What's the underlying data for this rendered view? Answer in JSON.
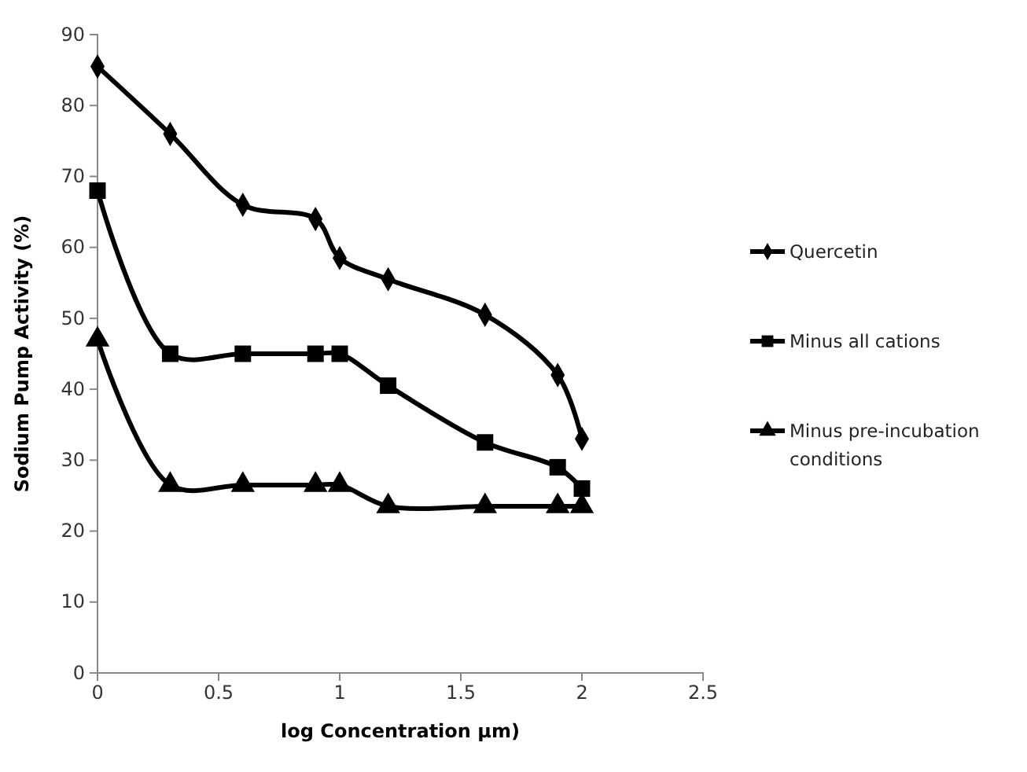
{
  "chart_data": {
    "type": "line",
    "xlabel": "log Concentration µm)",
    "ylabel": "Sodium Pump Activity (%)",
    "x": [
      0,
      0.3,
      0.6,
      0.9,
      1,
      1.2,
      1.6,
      1.9,
      2
    ],
    "xlim": [
      0,
      2.5
    ],
    "xticks": [
      0,
      0.5,
      1,
      1.5,
      2,
      2.5
    ],
    "ylim": [
      0,
      90
    ],
    "yticks": [
      0,
      10,
      20,
      30,
      40,
      50,
      60,
      70,
      80,
      90
    ],
    "grid": false,
    "legend": "right",
    "line_style": "solid",
    "series": [
      {
        "name": "Quercetin",
        "color": "#000000",
        "marker": "diamond",
        "values": [
          85.5,
          76,
          66,
          64,
          58.5,
          55.5,
          50.5,
          42,
          33
        ]
      },
      {
        "name": "Minus all cations",
        "color": "#000000",
        "marker": "square",
        "values": [
          68,
          45,
          45,
          45,
          45,
          40.5,
          32.5,
          29,
          26
        ]
      },
      {
        "name": "Minus pre-incubation conditions",
        "color": "#000000",
        "marker": "triangle",
        "values": [
          47,
          26.5,
          26.5,
          26.5,
          26.5,
          23.5,
          23.5,
          23.5,
          23.5
        ]
      }
    ]
  }
}
